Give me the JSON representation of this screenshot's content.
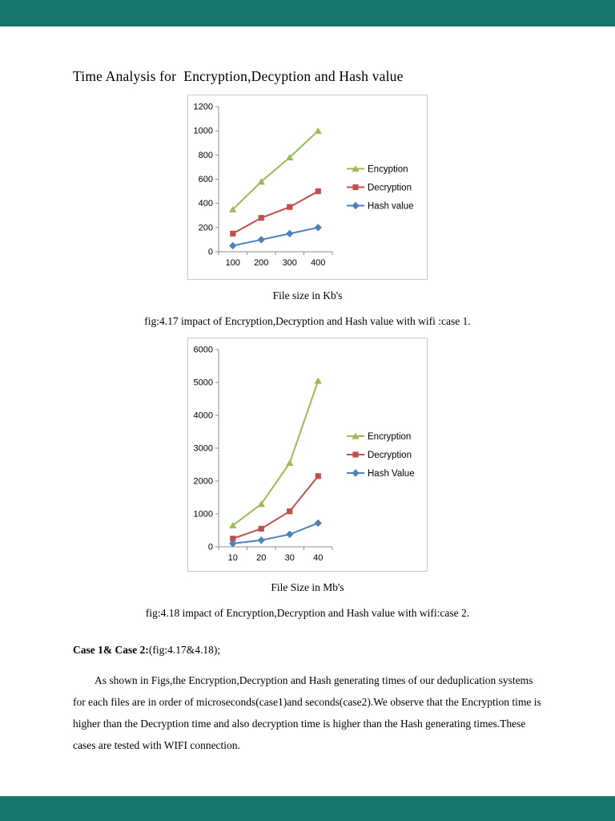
{
  "page": {
    "title": "Time Analysis for  Encryption,Decyption and Hash value"
  },
  "colors": {
    "viewer_background": "#17756b",
    "page_background": "#ffffff",
    "encryption_series": "#9bbb59",
    "decryption_series": "#c0504d",
    "hash_series": "#4f81bd",
    "axis": "#8c8c8c",
    "chart_border": "#c9c9c9"
  },
  "chart_data": [
    {
      "type": "line",
      "categories": [
        "100",
        "200",
        "300",
        "400"
      ],
      "series": [
        {
          "name": "Encyption",
          "values": [
            350,
            580,
            780,
            1000
          ],
          "color": "#9bbb59",
          "marker": "triangle"
        },
        {
          "name": "Decryption",
          "values": [
            150,
            280,
            370,
            500
          ],
          "color": "#c0504d",
          "marker": "square"
        },
        {
          "name": "Hash value",
          "values": [
            50,
            100,
            150,
            200
          ],
          "color": "#4f81bd",
          "marker": "diamond"
        }
      ],
      "ylim": [
        0,
        1200
      ],
      "ytick": 200,
      "xlabel": "File size in Kb's",
      "caption": "fig:4.17 impact of Encryption,Decryption and Hash value with wifi :case 1.",
      "legend_position": "right",
      "grid": false
    },
    {
      "type": "line",
      "categories": [
        "10",
        "20",
        "30",
        "40"
      ],
      "series": [
        {
          "name": "Encryption",
          "values": [
            650,
            1300,
            2550,
            5050
          ],
          "color": "#9bbb59",
          "marker": "triangle"
        },
        {
          "name": "Decryption",
          "values": [
            250,
            550,
            1080,
            2150
          ],
          "color": "#c0504d",
          "marker": "square"
        },
        {
          "name": "Hash Value",
          "values": [
            100,
            200,
            380,
            720
          ],
          "color": "#4f81bd",
          "marker": "diamond"
        }
      ],
      "ylim": [
        0,
        6000
      ],
      "ytick": 1000,
      "xlabel": "File Size in Mb's",
      "caption": "fig:4.18 impact of Encryption,Decryption and Hash value with wifi:case 2.",
      "legend_position": "right",
      "grid": false
    }
  ],
  "body": {
    "case_heading_bold": "Case 1& Case 2:",
    "case_heading_rest": "(fig:4.17&4.18);",
    "paragraph": "As shown in Figs,the Encryption,Decryption and Hash generating times of our deduplication systems for each files are in order of microseconds(case1)and seconds(case2).We observe that the Encryption time is higher than the Decryption time and also decryption time is higher than the Hash generating times.These cases are tested with WIFI connection."
  }
}
